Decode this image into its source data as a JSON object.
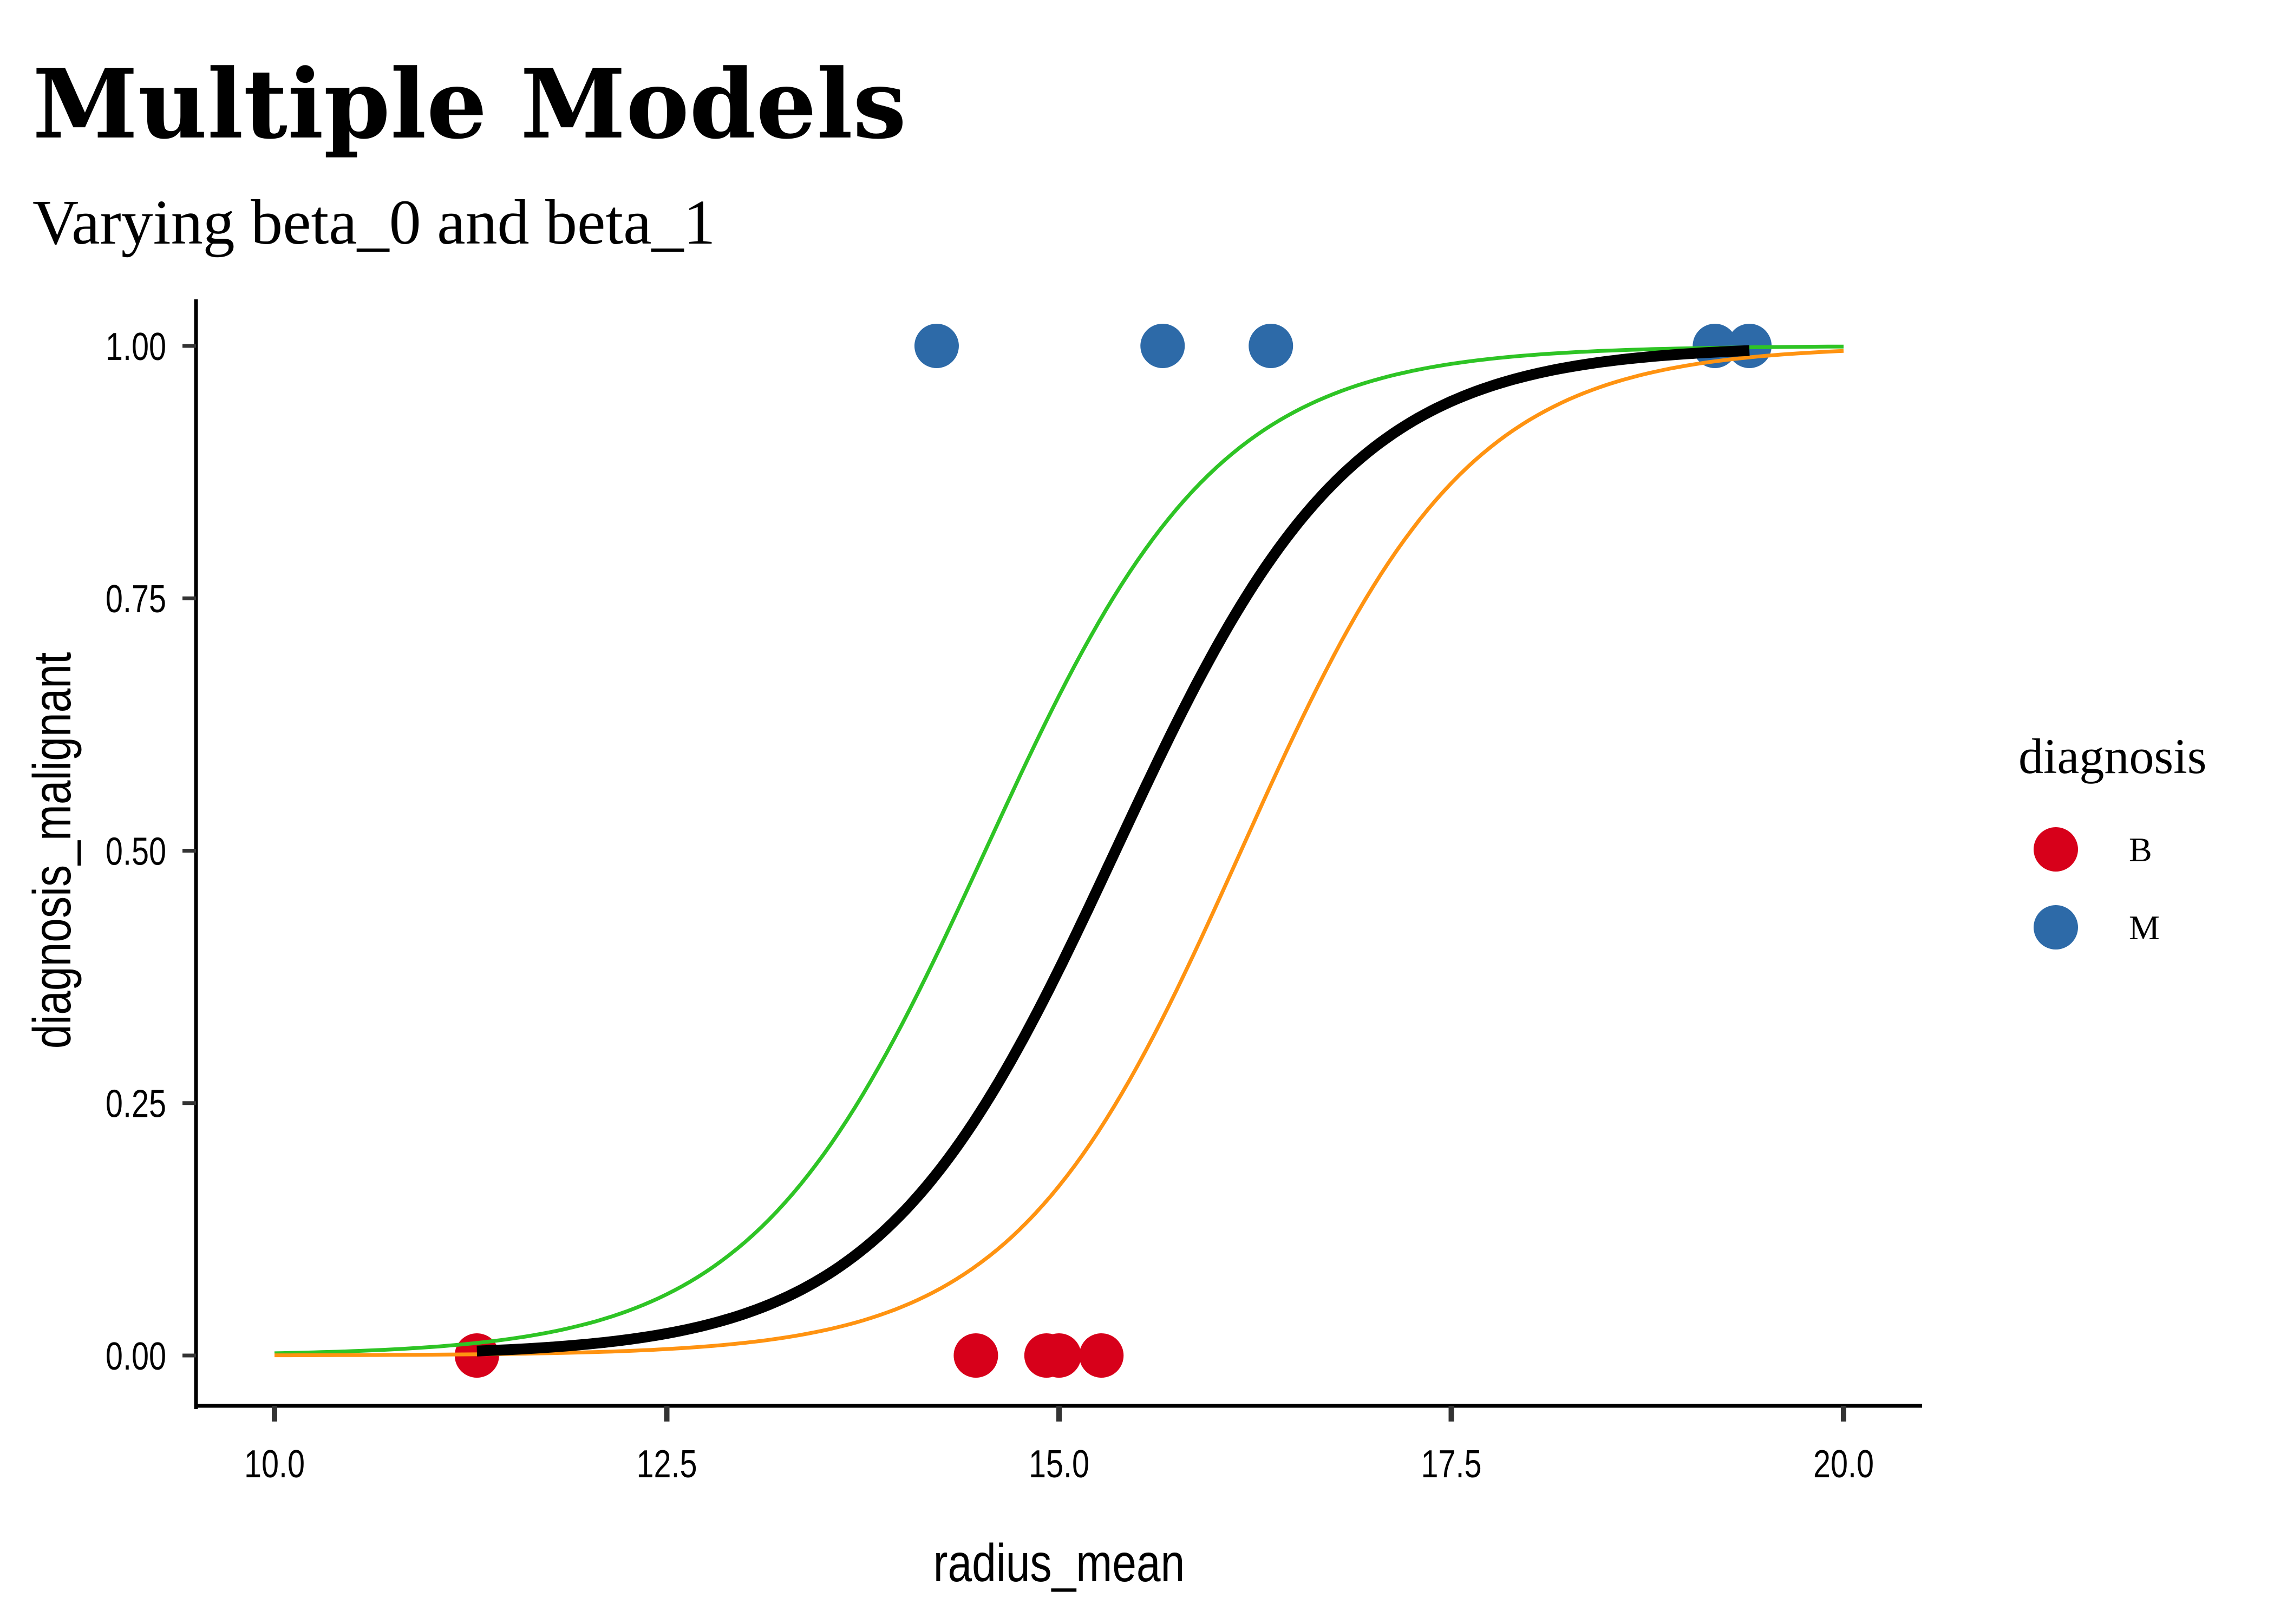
{
  "chart_data": {
    "type": "scatter",
    "title": "Multiple Models",
    "subtitle": "Varying beta_0 and beta_1",
    "xlabel": "radius_mean",
    "ylabel": "diagnosis_malignant",
    "xlim": [
      9.5,
      20.5
    ],
    "ylim": [
      -0.05,
      1.05
    ],
    "x_ticks": [
      10.0,
      12.5,
      15.0,
      17.5,
      20.0
    ],
    "x_tick_labels": [
      "10.0",
      "12.5",
      "15.0",
      "17.5",
      "20.0"
    ],
    "y_ticks": [
      0.0,
      0.25,
      0.5,
      0.75,
      1.0
    ],
    "y_tick_labels": [
      "0.00",
      "0.25",
      "0.50",
      "0.75",
      "1.00"
    ],
    "grid": false,
    "legend": {
      "title": "diagnosis",
      "position": "right",
      "entries": [
        {
          "label": "B",
          "color": "#D7001A"
        },
        {
          "label": "M",
          "color": "#2D6AA8"
        }
      ]
    },
    "points": [
      {
        "x": 11.29,
        "y": 0,
        "diagnosis": "B"
      },
      {
        "x": 14.47,
        "y": 0,
        "diagnosis": "B"
      },
      {
        "x": 14.92,
        "y": 0,
        "diagnosis": "B"
      },
      {
        "x": 15.0,
        "y": 0,
        "diagnosis": "B"
      },
      {
        "x": 15.27,
        "y": 0,
        "diagnosis": "B"
      },
      {
        "x": 14.22,
        "y": 1,
        "diagnosis": "M"
      },
      {
        "x": 15.66,
        "y": 1,
        "diagnosis": "M"
      },
      {
        "x": 16.35,
        "y": 1,
        "diagnosis": "M"
      },
      {
        "x": 19.18,
        "y": 1,
        "diagnosis": "M"
      },
      {
        "x": 19.4,
        "y": 1,
        "diagnosis": "M"
      }
    ],
    "curves": [
      {
        "name": "green-model",
        "color": "#2EC425",
        "x_range": [
          10.0,
          20.0
        ],
        "midpoint": 14.53,
        "steepness": 1.35,
        "weight": "thin"
      },
      {
        "name": "orange-model",
        "color": "#FF9311",
        "x_range": [
          10.0,
          20.0
        ],
        "midpoint": 16.16,
        "steepness": 1.38,
        "weight": "thin"
      },
      {
        "name": "fitted-model",
        "color": "#000000",
        "x_range": [
          11.29,
          19.4
        ],
        "midpoint": 15.36,
        "steepness": 1.33,
        "weight": "thick"
      }
    ]
  }
}
